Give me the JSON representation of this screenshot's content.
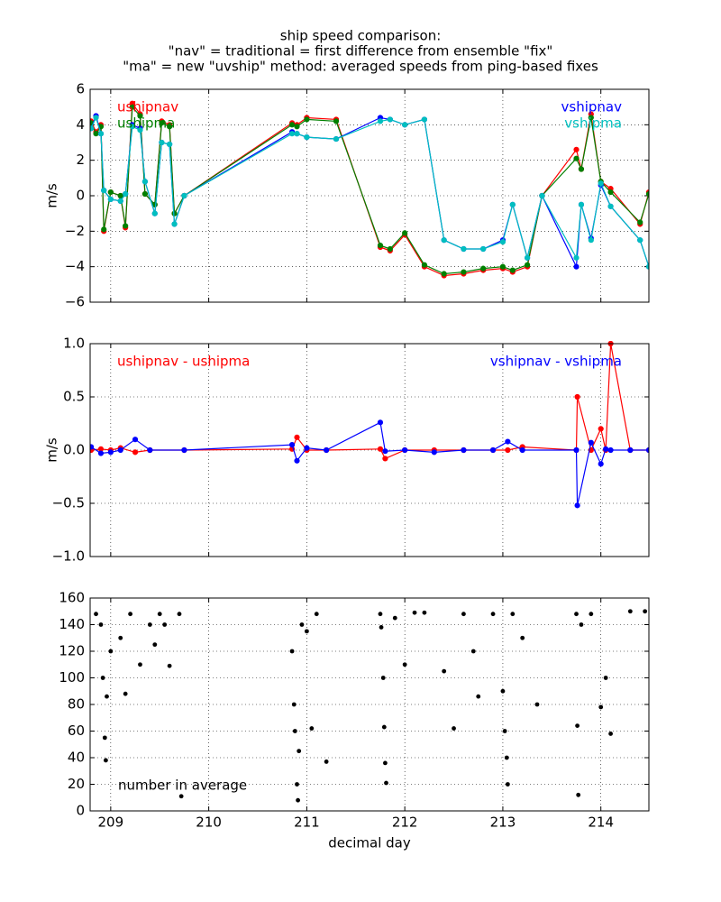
{
  "chart_data": [
    {
      "type": "line",
      "title": [
        "ship speed comparison:",
        "\"nav\" = traditional = first difference from ensemble \"fix\"",
        "\"ma\" = new \"uvship\" method: averaged speeds from ping-based fixes"
      ],
      "ylabel": "m/s",
      "xlim": [
        208.79,
        214.49
      ],
      "xticks": [
        209,
        210,
        211,
        212,
        213,
        214
      ],
      "xticklabels": false,
      "ylim": [
        -6,
        6
      ],
      "yticks": [
        {
          "value": -6,
          "label": "−6"
        },
        {
          "value": -4,
          "label": "−4"
        },
        {
          "value": -2,
          "label": "−2"
        },
        0,
        2,
        4,
        6
      ],
      "grid": true,
      "x": [
        208.8,
        208.85,
        208.9,
        208.93,
        209.0,
        209.1,
        209.15,
        209.22,
        209.3,
        209.35,
        209.45,
        209.52,
        209.6,
        209.65,
        209.75,
        210.85,
        210.9,
        211.0,
        211.3,
        211.75,
        211.85,
        212.0,
        212.2,
        212.4,
        212.6,
        212.8,
        213.0,
        213.1,
        213.25,
        213.4,
        213.75,
        213.8,
        213.9,
        214.0,
        214.1,
        214.4,
        214.49
      ],
      "series": [
        {
          "name": "ushipnav",
          "color": "#ff0000",
          "values": [
            4.2,
            3.6,
            4.0,
            -2.0,
            0.2,
            0.0,
            -1.8,
            5.2,
            4.6,
            0.1,
            -0.5,
            4.2,
            4.0,
            -1.0,
            0.0,
            4.1,
            4.0,
            4.4,
            4.3,
            -2.9,
            -3.1,
            -2.2,
            -4.0,
            -4.5,
            -4.4,
            -4.2,
            -4.1,
            -4.3,
            -4.0,
            0.0,
            2.6,
            1.5,
            4.6,
            0.8,
            0.4,
            -1.6,
            0.2
          ]
        },
        {
          "name": "ushipma",
          "color": "#008000",
          "values": [
            4.1,
            3.5,
            3.9,
            -1.9,
            0.2,
            0.0,
            -1.7,
            5.0,
            4.5,
            0.1,
            -0.5,
            4.1,
            3.9,
            -1.0,
            0.0,
            4.0,
            3.9,
            4.3,
            4.2,
            -2.8,
            -3.0,
            -2.1,
            -3.9,
            -4.4,
            -4.3,
            -4.1,
            -4.0,
            -4.2,
            -3.9,
            0.0,
            2.1,
            1.5,
            4.4,
            0.8,
            0.2,
            -1.5,
            0.1
          ]
        },
        {
          "name": "vshipnav",
          "color": "#0000ff",
          "values": [
            3.8,
            4.5,
            3.5,
            0.3,
            -0.2,
            -0.3,
            0.1,
            4.0,
            3.8,
            0.8,
            -1.0,
            3.0,
            2.9,
            -1.6,
            0.0,
            3.6,
            3.5,
            3.3,
            3.2,
            4.4,
            4.3,
            4.0,
            4.3,
            -2.5,
            -3.0,
            -3.0,
            -2.5,
            -0.5,
            -3.5,
            0.0,
            -4.0,
            -0.5,
            -2.4,
            0.6,
            -0.6,
            -2.5,
            -4.0
          ]
        },
        {
          "name": "vshipma",
          "color": "#00bfbf",
          "values": [
            3.8,
            4.4,
            3.5,
            0.3,
            -0.2,
            -0.3,
            0.1,
            3.9,
            3.7,
            0.8,
            -1.0,
            3.0,
            2.9,
            -1.6,
            0.0,
            3.5,
            3.5,
            3.3,
            3.2,
            4.2,
            4.3,
            4.0,
            4.3,
            -2.5,
            -3.0,
            -3.0,
            -2.6,
            -0.5,
            -3.5,
            0.0,
            -3.5,
            -0.5,
            -2.5,
            0.7,
            -0.6,
            -2.5,
            -4.0
          ]
        }
      ]
    },
    {
      "type": "line",
      "ylabel": "m/s",
      "xlim": [
        208.79,
        214.49
      ],
      "xticks": [
        209,
        210,
        211,
        212,
        213,
        214
      ],
      "xticklabels": false,
      "ylim": [
        -1,
        1
      ],
      "yticks": [
        {
          "value": -1,
          "label": "−1.0"
        },
        {
          "value": -0.5,
          "label": "−0.5"
        },
        {
          "value": 0,
          "label": "0.0"
        },
        {
          "value": 0.5,
          "label": "0.5"
        },
        {
          "value": 1,
          "label": "1.0"
        }
      ],
      "grid": true,
      "x": [
        208.8,
        208.9,
        209.0,
        209.1,
        209.25,
        209.4,
        209.75,
        210.85,
        210.9,
        211.0,
        211.2,
        211.75,
        211.8,
        212.0,
        212.3,
        212.6,
        212.9,
        213.05,
        213.2,
        213.75,
        213.76,
        213.9,
        214.0,
        214.05,
        214.1,
        214.3,
        214.49
      ],
      "series": [
        {
          "name": "ushipnav - ushipma",
          "color": "#ff0000",
          "values": [
            0,
            0.01,
            0,
            0.02,
            -0.02,
            0,
            0,
            0.01,
            0.12,
            0,
            0,
            0.01,
            -0.08,
            0,
            0,
            0,
            0,
            0,
            0.03,
            0,
            0.5,
            0,
            0.2,
            0,
            1.0,
            0,
            0
          ]
        },
        {
          "name": "vshipnav - vshipma",
          "color": "#0000ff",
          "values": [
            0.03,
            -0.03,
            -0.02,
            0,
            0.1,
            0,
            0,
            0.05,
            -0.1,
            0.02,
            0,
            0.26,
            -0.01,
            0,
            -0.02,
            0,
            0,
            0.08,
            0,
            0,
            -0.52,
            0.07,
            -0.13,
            0.01,
            0,
            0,
            0
          ]
        }
      ]
    },
    {
      "type": "scatter",
      "xlabel": "decimal day",
      "annotation": "number in average",
      "xlim": [
        208.79,
        214.49
      ],
      "xticks": [
        209,
        210,
        211,
        212,
        213,
        214
      ],
      "xticklabels": true,
      "ylim": [
        0,
        160
      ],
      "yticks": [
        0,
        20,
        40,
        60,
        80,
        100,
        120,
        140,
        160
      ],
      "grid": true,
      "x": [
        208.85,
        208.9,
        208.92,
        208.95,
        208.94,
        208.96,
        209.0,
        209.1,
        209.15,
        209.2,
        209.3,
        209.4,
        209.45,
        209.5,
        209.55,
        209.6,
        209.72,
        209.7,
        210.85,
        210.87,
        210.88,
        210.9,
        210.91,
        210.92,
        210.95,
        211.0,
        211.1,
        211.2,
        211.05,
        211.75,
        211.76,
        211.78,
        211.79,
        211.8,
        211.81,
        211.9,
        212.0,
        212.1,
        212.2,
        212.4,
        212.5,
        212.6,
        212.7,
        212.75,
        212.9,
        213.0,
        213.02,
        213.04,
        213.05,
        213.1,
        213.2,
        213.35,
        213.75,
        213.76,
        213.77,
        213.8,
        213.9,
        214.0,
        214.05,
        214.1,
        214.3,
        214.45
      ],
      "series": [
        {
          "color": "#000000",
          "values": [
            148,
            140,
            100,
            38,
            55,
            86,
            120,
            130,
            88,
            148,
            110,
            140,
            125,
            148,
            140,
            109,
            11,
            148,
            120,
            80,
            60,
            20,
            8,
            45,
            140,
            135,
            148,
            37,
            62,
            148,
            138,
            100,
            63,
            36,
            21,
            145,
            110,
            149,
            149,
            105,
            62,
            148,
            120,
            86,
            148,
            90,
            60,
            40,
            20,
            148,
            130,
            80,
            148,
            64,
            12,
            140,
            148,
            78,
            100,
            58,
            150,
            150
          ]
        }
      ]
    }
  ]
}
